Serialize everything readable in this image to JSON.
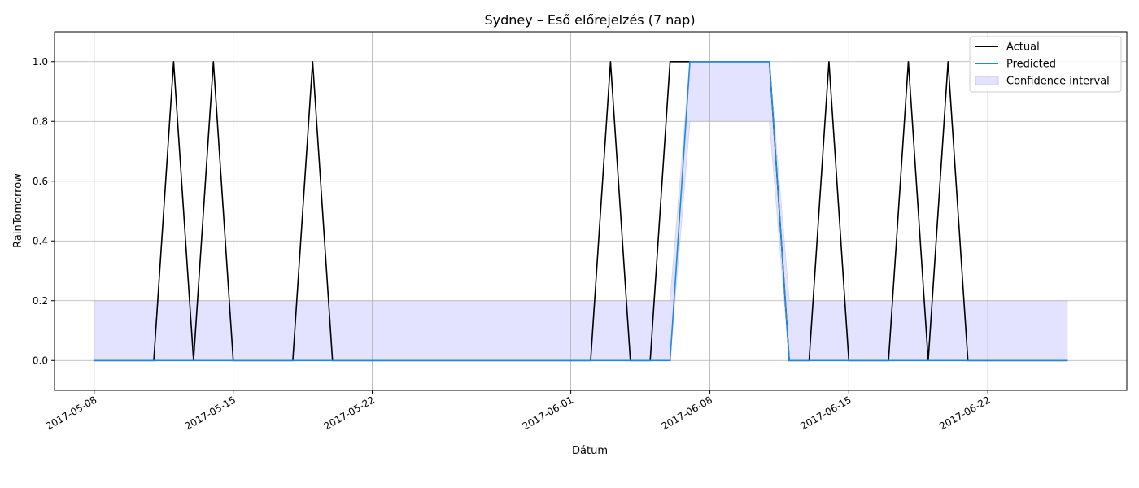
{
  "chart_data": {
    "type": "line",
    "title": "Sydney – Eső előrejelzés (7 nap)",
    "xlabel": "Dátum",
    "ylabel": "RainTomorrow",
    "ylim": [
      -0.1,
      1.1
    ],
    "xlim": [
      "2017-05-06",
      "2017-06-29"
    ],
    "yticks": [
      0.0,
      0.2,
      0.4,
      0.6,
      0.8,
      1.0
    ],
    "ytick_labels": [
      "0.0",
      "0.2",
      "0.4",
      "0.6",
      "0.8",
      "1.0"
    ],
    "xticks": [
      "2017-05-08",
      "2017-05-15",
      "2017-05-22",
      "2017-06-01",
      "2017-06-08",
      "2017-06-15",
      "2017-06-22"
    ],
    "grid": true,
    "legend_position": "top-right",
    "x": [
      "2017-05-08",
      "2017-05-09",
      "2017-05-10",
      "2017-05-11",
      "2017-05-12",
      "2017-05-13",
      "2017-05-14",
      "2017-05-15",
      "2017-05-16",
      "2017-05-17",
      "2017-05-18",
      "2017-05-19",
      "2017-05-20",
      "2017-05-21",
      "2017-05-22",
      "2017-05-23",
      "2017-05-24",
      "2017-05-25",
      "2017-05-26",
      "2017-05-27",
      "2017-05-28",
      "2017-05-29",
      "2017-05-30",
      "2017-05-31",
      "2017-06-01",
      "2017-06-02",
      "2017-06-03",
      "2017-06-04",
      "2017-06-05",
      "2017-06-06",
      "2017-06-07",
      "2017-06-08",
      "2017-06-09",
      "2017-06-10",
      "2017-06-11",
      "2017-06-12",
      "2017-06-13",
      "2017-06-14",
      "2017-06-15",
      "2017-06-16",
      "2017-06-17",
      "2017-06-18",
      "2017-06-19",
      "2017-06-20",
      "2017-06-21",
      "2017-06-22",
      "2017-06-23",
      "2017-06-24",
      "2017-06-25",
      "2017-06-26"
    ],
    "series": [
      {
        "name": "Actual",
        "color": "#000000",
        "values": [
          0,
          0,
          0,
          0,
          1,
          0,
          1,
          0,
          0,
          0,
          0,
          1,
          0,
          0,
          0,
          0,
          0,
          0,
          0,
          0,
          0,
          0,
          0,
          0,
          0,
          0,
          1,
          0,
          0,
          1,
          1,
          1,
          1,
          1,
          1,
          0,
          0,
          1,
          0,
          0,
          0,
          1,
          0,
          1,
          0,
          0,
          0,
          0,
          0,
          0
        ]
      },
      {
        "name": "Predicted",
        "color": "#1e88e5",
        "values": [
          0,
          0,
          0,
          0,
          0,
          0,
          0,
          0,
          0,
          0,
          0,
          0,
          0,
          0,
          0,
          0,
          0,
          0,
          0,
          0,
          0,
          0,
          0,
          0,
          0,
          0,
          0,
          0,
          0,
          0,
          1,
          1,
          1,
          1,
          1,
          0,
          0,
          0,
          0,
          0,
          0,
          0,
          0,
          0,
          0,
          0,
          0,
          0,
          0,
          0
        ]
      }
    ],
    "band": {
      "name": "Confidence interval",
      "color": "#e3e3ff",
      "lower": [
        0,
        0,
        0,
        0,
        0,
        0,
        0,
        0,
        0,
        0,
        0,
        0,
        0,
        0,
        0,
        0,
        0,
        0,
        0,
        0,
        0,
        0,
        0,
        0,
        0,
        0,
        0,
        0,
        0,
        0,
        0.8,
        0.8,
        0.8,
        0.8,
        0.8,
        0,
        0,
        0,
        0,
        0,
        0,
        0,
        0,
        0,
        0,
        0,
        0,
        0,
        0,
        0
      ],
      "upper": [
        0.2,
        0.2,
        0.2,
        0.2,
        0.2,
        0.2,
        0.2,
        0.2,
        0.2,
        0.2,
        0.2,
        0.2,
        0.2,
        0.2,
        0.2,
        0.2,
        0.2,
        0.2,
        0.2,
        0.2,
        0.2,
        0.2,
        0.2,
        0.2,
        0.2,
        0.2,
        0.2,
        0.2,
        0.2,
        0.2,
        1,
        1,
        1,
        1,
        1,
        0.2,
        0.2,
        0.2,
        0.2,
        0.2,
        0.2,
        0.2,
        0.2,
        0.2,
        0.2,
        0.2,
        0.2,
        0.2,
        0.2,
        0.2
      ]
    }
  }
}
